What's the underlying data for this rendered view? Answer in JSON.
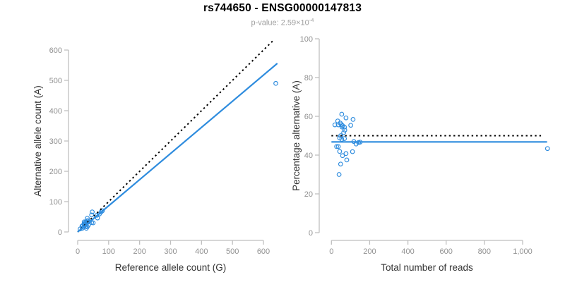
{
  "header": {
    "title": "rs744650 - ENSG00000147813",
    "pvalue_label": "p-value: ",
    "pvalue_mantissa": "2.59×10",
    "pvalue_exponent": "-4"
  },
  "colors": {
    "background": "#ffffff",
    "accent_blue": "#2E8CDE",
    "identity_black": "#000000",
    "axis_line": "#bfbfbf",
    "tick_label": "#919191",
    "axis_title": "#333333",
    "subtitle_gray": "#9e9e9e",
    "title_black": "#000000"
  },
  "chart_data": [
    {
      "type": "scatter",
      "name": "allele-count-scatter",
      "xlabel": "Reference allele count (G)",
      "ylabel": "Alternative allele count (A)",
      "xlim": [
        0,
        650
      ],
      "ylim": [
        0,
        640
      ],
      "xticks": [
        0,
        100,
        200,
        300,
        400,
        500,
        600
      ],
      "xtick_labels": [
        "0",
        "100",
        "200",
        "300",
        "400",
        "500",
        "600"
      ],
      "yticks": [
        0,
        100,
        200,
        300,
        400,
        500,
        600
      ],
      "ytick_labels": [
        "0",
        "100",
        "200",
        "300",
        "400",
        "500",
        "600"
      ],
      "grid": false,
      "legend": false,
      "marker": "open-circle",
      "points": [
        [
          21,
          33
        ],
        [
          31,
          45
        ],
        [
          47,
          66
        ],
        [
          8,
          10
        ],
        [
          14,
          19
        ],
        [
          20,
          26
        ],
        [
          26,
          32
        ],
        [
          16,
          20
        ],
        [
          23,
          29
        ],
        [
          31,
          37
        ],
        [
          45,
          56
        ],
        [
          25,
          30
        ],
        [
          33,
          37
        ],
        [
          31,
          33
        ],
        [
          24,
          24
        ],
        [
          22,
          21
        ],
        [
          28,
          26
        ],
        [
          35,
          33
        ],
        [
          62,
          55
        ],
        [
          70,
          59
        ],
        [
          76,
          66
        ],
        [
          80,
          70
        ],
        [
          20,
          16
        ],
        [
          15,
          12
        ],
        [
          25,
          18
        ],
        [
          45,
          31
        ],
        [
          64,
          46
        ],
        [
          35,
          23
        ],
        [
          50,
          30
        ],
        [
          31,
          17
        ],
        [
          28,
          12
        ],
        [
          640,
          490
        ]
      ],
      "lines": [
        {
          "name": "identity-line",
          "style": "dotted",
          "color_key": "identity_black",
          "from": [
            0,
            0
          ],
          "to": [
            633,
            633
          ]
        },
        {
          "name": "fit-line",
          "style": "solid",
          "color_key": "accent_blue",
          "from": [
            0,
            0
          ],
          "to": [
            645,
            556
          ]
        }
      ]
    },
    {
      "type": "scatter",
      "name": "percentage-vs-reads-scatter",
      "xlabel": "Total number of reads",
      "ylabel": "Percentage alternative (A)",
      "xlim": [
        0,
        1150
      ],
      "ylim": [
        0,
        100
      ],
      "xticks": [
        0,
        200,
        400,
        600,
        800,
        1000
      ],
      "xtick_labels": [
        "0",
        "200",
        "400",
        "600",
        "800",
        "1,000"
      ],
      "yticks": [
        0,
        20,
        40,
        60,
        80,
        100
      ],
      "ytick_labels": [
        "0",
        "20",
        "40",
        "60",
        "80",
        "100"
      ],
      "grid": false,
      "legend": false,
      "marker": "open-circle",
      "points": [
        [
          54,
          61.1
        ],
        [
          76,
          59.2
        ],
        [
          113,
          58.4
        ],
        [
          18,
          55.6
        ],
        [
          33,
          57.6
        ],
        [
          46,
          56.5
        ],
        [
          58,
          55.2
        ],
        [
          36,
          55.6
        ],
        [
          52,
          55.8
        ],
        [
          68,
          54.4
        ],
        [
          101,
          55.4
        ],
        [
          55,
          54.5
        ],
        [
          70,
          52.9
        ],
        [
          64,
          51.6
        ],
        [
          48,
          50.0
        ],
        [
          43,
          48.8
        ],
        [
          54,
          48.1
        ],
        [
          68,
          48.5
        ],
        [
          117,
          47.0
        ],
        [
          129,
          45.7
        ],
        [
          142,
          46.5
        ],
        [
          150,
          46.7
        ],
        [
          36,
          44.4
        ],
        [
          27,
          44.4
        ],
        [
          43,
          41.9
        ],
        [
          76,
          40.8
        ],
        [
          110,
          41.8
        ],
        [
          58,
          39.7
        ],
        [
          80,
          37.5
        ],
        [
          48,
          35.4
        ],
        [
          40,
          30.0
        ],
        [
          1130,
          43.4
        ]
      ],
      "lines": [
        {
          "name": "expected-50pct-line",
          "style": "dotted",
          "color_key": "identity_black",
          "from": [
            0,
            50
          ],
          "to": [
            1110,
            50
          ]
        },
        {
          "name": "fit-line",
          "style": "solid",
          "color_key": "accent_blue",
          "from": [
            0,
            46.8
          ],
          "to": [
            1128,
            46.8
          ]
        }
      ]
    }
  ]
}
